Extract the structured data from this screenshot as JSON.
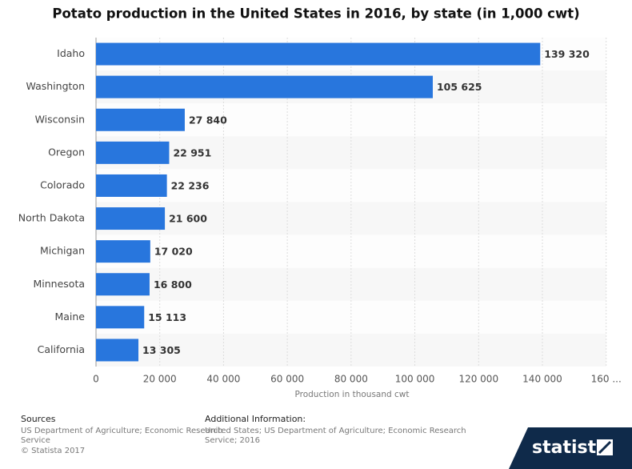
{
  "chart_data": {
    "type": "bar",
    "orientation": "horizontal",
    "title": "Potato production in the United States in 2016, by state (in 1,000 cwt)",
    "categories": [
      "Idaho",
      "Washington",
      "Wisconsin",
      "Oregon",
      "Colorado",
      "North Dakota",
      "Michigan",
      "Minnesota",
      "Maine",
      "California"
    ],
    "values": [
      139320,
      105625,
      27840,
      22951,
      22236,
      21600,
      17020,
      16800,
      15113,
      13305
    ],
    "value_labels": [
      "139 320",
      "105 625",
      "27 840",
      "22 951",
      "22 236",
      "21 600",
      "17 020",
      "16 800",
      "15 113",
      "13 305"
    ],
    "color": "#2876dd",
    "xlabel": "Production in thousand cwt",
    "xlim": [
      0,
      160000
    ],
    "xticks": [
      0,
      {
        "value": 20000,
        "label": "20 000"
      },
      {
        "value": 40000,
        "label": "40 000"
      },
      {
        "value": 60000,
        "label": "60 000"
      },
      {
        "value": 80000,
        "label": "80 000"
      },
      {
        "value": 100000,
        "label": "100 000"
      },
      {
        "value": 120000,
        "label": "120 000"
      },
      {
        "value": 140000,
        "label": "140 000"
      },
      {
        "value": 160000,
        "label": "160 ..."
      }
    ],
    "grid": true
  },
  "footer": {
    "sources_heading": "Sources",
    "sources": [
      "US Department of Agriculture; Economic Research",
      "Service",
      "© Statista 2017"
    ],
    "info_heading": "Additional Information:",
    "info": [
      "United States; US Department of Agriculture; Economic Research",
      "Service; 2016"
    ],
    "logo": "statista"
  }
}
